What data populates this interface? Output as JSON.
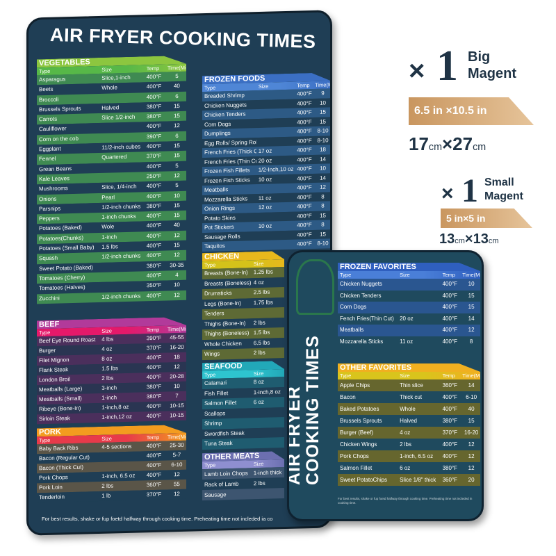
{
  "big_magnet": {
    "title": "AIR FRYER COOKING TIMES",
    "columns": [
      "Type",
      "Size",
      "Temp",
      "Time(Mins)"
    ],
    "note": "For best results, shake or fup foetd halfway through cooking time. Preheating time not incleded ia co",
    "sections": {
      "vegetables": {
        "label": "VEGETABLES",
        "head": "#8cc63f",
        "bar": "#57b848",
        "row": "#3f8a52",
        "alt": "#1f3e55",
        "rows": [
          [
            "Asparagus",
            "Slice,1-inch",
            "400°F",
            "5"
          ],
          [
            "Beets",
            "Whole",
            "400°F",
            "40"
          ],
          [
            "Broccoli",
            "",
            "400°F",
            "6"
          ],
          [
            "Brussels Sprouts",
            "Halved",
            "380°F",
            "15"
          ],
          [
            "Carrots",
            "Slice 1/2-inch",
            "380°F",
            "15"
          ],
          [
            "Cauliflower",
            "",
            "400°F",
            "12"
          ],
          [
            "Corn on the cob",
            "",
            "390°F",
            "6"
          ],
          [
            "Eggplant",
            "11/2-inch cubes",
            "400°F",
            "15"
          ],
          [
            "Fennel",
            "Quartered",
            "370°F",
            "15"
          ],
          [
            "Grean Beans",
            "",
            "400°F",
            "5"
          ],
          [
            "Kale Leaves",
            "",
            "250°F",
            "12"
          ],
          [
            "Mushrooms",
            "Slice, 1/4-inch",
            "400°F",
            "5"
          ],
          [
            "Onions",
            "Pearl",
            "400°F",
            "10"
          ],
          [
            "Parsnips",
            "1/2-inch chunks",
            "380°F",
            "15"
          ],
          [
            "Peppers",
            "1-inch chunks",
            "400°F",
            "15"
          ],
          [
            "Potatoes (Baked)",
            "Wole",
            "400°F",
            "40"
          ],
          [
            "Potatoes(Chunks)",
            "1-inch",
            "400°F",
            "12"
          ],
          [
            "Potatoes (Small Baby)",
            "1.5 lbs",
            "400°F",
            "15"
          ],
          [
            "Squash",
            "1/2-inch chunks",
            "400°F",
            "12"
          ],
          [
            "Sweet Potato (Baked)",
            "",
            "380°F",
            "30-35"
          ],
          [
            "Tomatoes (Cherry)",
            "",
            "400°F",
            "4"
          ],
          [
            "Tomatoes (Halves)",
            "",
            "350°F",
            "10"
          ],
          [
            "Zucchini",
            "1/2-inch chunks",
            "400°F",
            "12"
          ]
        ]
      },
      "beef": {
        "label": "BEEF",
        "head": "#b23a9a",
        "bar": "#e5196a",
        "row": "#4b2f5c",
        "alt": "#2a3552",
        "rows": [
          [
            "Beef Eye Round Roast",
            "4 lbs",
            "390°F",
            "45-55"
          ],
          [
            "Burger",
            "4 oz",
            "370°F",
            "16-20"
          ],
          [
            "Filet Mignon",
            "8 oz",
            "400°F",
            "18"
          ],
          [
            "Flank Steak",
            "1.5 lbs",
            "400°F",
            "12"
          ],
          [
            "London Broil",
            "2 lbs",
            "400°F",
            "20-28"
          ],
          [
            "Meatballs (Large)",
            "3-inch",
            "380°F",
            "10"
          ],
          [
            "Meatballs (Small)",
            "1-inch",
            "380°F",
            "7"
          ],
          [
            "Ribeye (Bone-In)",
            "1-inch,8 oz",
            "400°F",
            "10-15"
          ],
          [
            "Sirloin Steak",
            "1-inch,12 oz",
            "400°F",
            "10-15"
          ]
        ]
      },
      "pork": {
        "label": "PORK",
        "head": "#f39c1f",
        "bar": "#e83a4a",
        "row": "#5a5548",
        "alt": "#1f3e55",
        "rows": [
          [
            "Baby Back Ribs",
            "4-5 sections",
            "400°F",
            "25-30"
          ],
          [
            "Bacon (Regular Cut)",
            "",
            "400°F",
            "5-7"
          ],
          [
            "Bacon (Thick Cut)",
            "",
            "400°F",
            "6-10"
          ],
          [
            "Pork Chops",
            "1-inch, 6.5 oz",
            "400°F",
            "12"
          ],
          [
            "Pork Loin",
            "2 lbs",
            "360°F",
            "55"
          ],
          [
            "Tenderloin",
            "1 lb",
            "370°F",
            "12"
          ]
        ]
      },
      "frozen_foods": {
        "label": "FROZEN FOODS",
        "head": "#3b6fc4",
        "bar": "#4f86d6",
        "row": "#2d5a85",
        "alt": "#1f3e55",
        "rows": [
          [
            "Breaded Shrimp",
            "",
            "400°F",
            "9"
          ],
          [
            "Chicken Nuggets",
            "",
            "400°F",
            "10"
          ],
          [
            "Chicken Tenders",
            "",
            "400°F",
            "15"
          ],
          [
            "Corn Dogs",
            "",
            "400°F",
            "15"
          ],
          [
            "Dumplings",
            "",
            "400°F",
            "8-10"
          ],
          [
            "Egg Rolls/ Spring Rolls",
            "",
            "400°F",
            "8-10"
          ],
          [
            "French Fries (Thick Cut)",
            "17 oz",
            "400°F",
            "18"
          ],
          [
            "French Fries (Thin Cut)",
            "20 oz",
            "400°F",
            "14"
          ],
          [
            "Frozen Fish Fillets",
            "1/2-Inch,10 oz",
            "400°F",
            "10"
          ],
          [
            "Frozen Fish Sticks",
            "10 oz",
            "400°F",
            "14"
          ],
          [
            "Meatballs",
            "",
            "400°F",
            "12"
          ],
          [
            "Mozzarella Sticks",
            "11 oz",
            "400°F",
            "8"
          ],
          [
            "Onion Rings",
            "12 oz",
            "400°F",
            "8"
          ],
          [
            "Potato Skins",
            "",
            "400°F",
            "15"
          ],
          [
            "Pot Stickers",
            "10 oz",
            "400°F",
            "8"
          ],
          [
            "Sausage Rolls",
            "",
            "400°F",
            "15"
          ],
          [
            "Taquitos",
            "",
            "400°F",
            "8-10"
          ]
        ]
      },
      "chicken": {
        "label": "CHICKEN",
        "head": "#e8b81c",
        "bar": "#d4c21a",
        "row": "#5e6a35",
        "alt": "#1f3e55",
        "rows": [
          [
            "Breasts (Bone-In)",
            "1.25 lbs"
          ],
          [
            "Breasts (Boneless)",
            "4 oz"
          ],
          [
            "Drumsticks",
            "2.5 lbs"
          ],
          [
            "Legs (Bone-In)",
            "1.75 lbs"
          ],
          [
            "Tenders",
            ""
          ],
          [
            "Thighs (Bone-In)",
            "2 lbs"
          ],
          [
            "Thighs (Boneless)",
            "1.5 lbs"
          ],
          [
            "Whole Chicken",
            "6.5 lbs"
          ],
          [
            "Wings",
            "2 lbs"
          ]
        ]
      },
      "seafood": {
        "label": "SEAFOOD",
        "head": "#22a8b8",
        "bar": "#2ec4cf",
        "row": "#1f5c70",
        "alt": "#1f3e55",
        "rows": [
          [
            "Calamari",
            "8 oz"
          ],
          [
            "Fish Fillet",
            "1-inch,8 oz"
          ],
          [
            "Salmon Fillet",
            "6 oz"
          ],
          [
            "Scallops",
            ""
          ],
          [
            "Shrimp",
            ""
          ],
          [
            "Swordfish Steak",
            ""
          ],
          [
            "Tuna Steak",
            ""
          ]
        ]
      },
      "other_meats": {
        "label": "OTHER MEATS",
        "head": "#6c6fb0",
        "bar": "#8f8fd0",
        "row": "#3d5570",
        "alt": "#1f3e55",
        "rows": [
          [
            "Lamb Loin Chops",
            "1-inch thick"
          ],
          [
            "Rack of Lamb",
            "2 lbs"
          ],
          [
            "Sausage",
            ""
          ]
        ]
      }
    }
  },
  "small_magnet": {
    "title_line1": "AIR FRYER",
    "title_line2": "COOKING TIMES",
    "columns": [
      "Type",
      "Size",
      "Temp",
      "Time(Mins)"
    ],
    "note": "For best results, shake or fup foetd halfway through cooking time. Preheating time not incleded in cooking time.",
    "sections": {
      "frozen_favorites": {
        "label": "FROZEN FAVORITES",
        "head": "#2f5fbf",
        "bar": "#4a7fd8",
        "row": "#2a5690",
        "alt": "#1f4a5e",
        "rows": [
          [
            "Chicken Nuggets",
            "",
            "400°F",
            "10"
          ],
          [
            "Chicken Tenders",
            "",
            "400°F",
            "15"
          ],
          [
            "Corn Dogs",
            "",
            "400°F",
            "15"
          ],
          [
            "Fench Fries(Thin Cut)",
            "20 oz",
            "400°F",
            "14"
          ],
          [
            "Meatballs",
            "",
            "400°F",
            "12"
          ],
          [
            "Mozzarella Sticks",
            "11 oz",
            "400°F",
            "8"
          ]
        ]
      },
      "other_favorites": {
        "label": "OTHER FAVORITES",
        "head": "#f0b020",
        "bar": "#d9c41c",
        "row": "#66662e",
        "alt": "#1f4a5e",
        "rows": [
          [
            "Apple Chips",
            "Thin slice",
            "360°F",
            "14"
          ],
          [
            "Bacon",
            "Thick cut",
            "400°F",
            "6-10"
          ],
          [
            "Baked Potatoes",
            "Whole",
            "400°F",
            "40"
          ],
          [
            "Brussels Sprouts",
            "Halved",
            "380°F",
            "15"
          ],
          [
            "Burger (Beef)",
            "4 oz",
            "370°F",
            "16-20"
          ],
          [
            "Chicken Wings",
            "2 lbs",
            "400°F",
            "12"
          ],
          [
            "Pork Chops",
            "1-inch, 6.5 oz",
            "400°F",
            "12"
          ],
          [
            "Salmon Fillet",
            "6 oz",
            "380°F",
            "12"
          ],
          [
            "Sweet PotatoChips",
            "Slice 1/8\" thick",
            "360°F",
            "20"
          ]
        ]
      }
    }
  },
  "specs": {
    "big": {
      "multiplier": "×",
      "count": "1",
      "label_line1": "Big",
      "label_line2": "Magent",
      "inch_size": "6.5 in ×10.5 in",
      "cm_w": "17",
      "cm_h": "27",
      "cm_unit": "cm",
      "times": "×"
    },
    "small": {
      "multiplier": "×",
      "count": "1",
      "label_line1": "Small",
      "label_line2": "Magent",
      "inch_size": "5 in×5 in",
      "cm_w": "13",
      "cm_h": "13",
      "cm_unit": "cm",
      "times": "×"
    },
    "text_color": "#1f3345",
    "band_color": "#c9965f"
  }
}
